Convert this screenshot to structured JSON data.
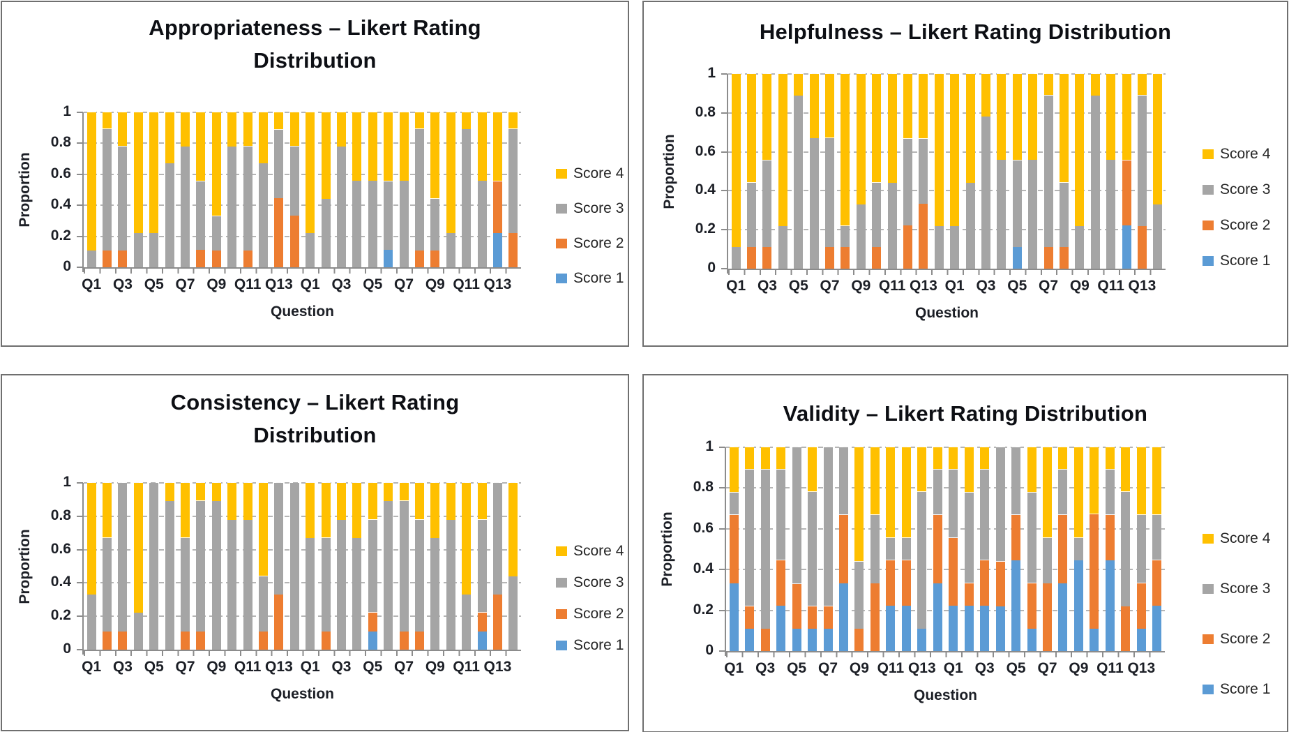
{
  "legend_labels": [
    "Score 4",
    "Score 3",
    "Score 2",
    "Score 1"
  ],
  "colors": {
    "score1_blue": "#5B9BD5",
    "score2_orange": "#ED7D31",
    "score3_gray": "#A5A5A5",
    "score4_yellow": "#FFC000",
    "gridline": "#b5b5b5",
    "axis": "#8c8c8c",
    "title_text": "#0d0f14"
  },
  "chart_data": [
    {
      "type": "bar",
      "stacked": true,
      "title": "Appropriateness – Likert Rating Distribution",
      "title_lines": [
        "Appropriateness – Likert Rating",
        "Distribution"
      ],
      "xlabel": "Question",
      "ylabel": "Proportion",
      "ylim": [
        0,
        1
      ],
      "ytick_labels": [
        "0",
        "0.2",
        "0.4",
        "0.6",
        "0.8",
        "1"
      ],
      "grid": "dashed-horizontal",
      "legend_position": "right",
      "legend_order": [
        "Score 4",
        "Score 3",
        "Score 2",
        "Score 1"
      ],
      "categories": [
        "Q1",
        "Q2",
        "Q3",
        "Q4",
        "Q5",
        "Q6",
        "Q7",
        "Q8",
        "Q9",
        "Q10",
        "Q11",
        "Q12",
        "Q13",
        "Q14",
        "Q1",
        "Q2",
        "Q3",
        "Q4",
        "Q5",
        "Q6",
        "Q7",
        "Q8",
        "Q9",
        "Q10",
        "Q11",
        "Q12",
        "Q13",
        "Q14"
      ],
      "xtick_labels_shown": [
        "Q1",
        "Q3",
        "Q5",
        "Q7",
        "Q9",
        "Q11",
        "Q13",
        "Q1",
        "Q3",
        "Q5",
        "Q7",
        "Q9",
        "Q11",
        "Q13"
      ],
      "series": [
        {
          "name": "Score 1",
          "color": "#5B9BD5",
          "values": [
            0,
            0,
            0,
            0,
            0,
            0,
            0,
            0,
            0,
            0,
            0,
            0,
            0,
            0,
            0,
            0,
            0,
            0,
            0,
            0.11,
            0,
            0,
            0,
            0,
            0,
            0,
            0.22,
            0
          ]
        },
        {
          "name": "Score 2",
          "color": "#ED7D31",
          "values": [
            0,
            0.11,
            0.11,
            0,
            0,
            0,
            0,
            0.11,
            0.11,
            0,
            0.11,
            0,
            0.44,
            0.33,
            0,
            0,
            0,
            0,
            0,
            0,
            0,
            0.11,
            0.11,
            0,
            0,
            0,
            0.33,
            0.22
          ]
        },
        {
          "name": "Score 3",
          "color": "#A5A5A5",
          "values": [
            0.11,
            0.78,
            0.67,
            0.22,
            0.22,
            0.67,
            0.78,
            0.44,
            0.22,
            0.78,
            0.67,
            0.67,
            0.44,
            0.44,
            0.22,
            0.44,
            0.78,
            0.56,
            0.56,
            0.44,
            0.56,
            0.78,
            0.33,
            0.22,
            0.89,
            0.56,
            0,
            0.67
          ]
        },
        {
          "name": "Score 4",
          "color": "#FFC000",
          "values": [
            0.89,
            0.11,
            0.22,
            0.78,
            0.78,
            0.33,
            0.22,
            0.44,
            0.67,
            0.22,
            0.22,
            0.33,
            0.11,
            0.22,
            0.78,
            0.56,
            0.22,
            0.44,
            0.44,
            0.44,
            0.44,
            0.11,
            0.56,
            0.78,
            0.11,
            0.44,
            0.44,
            0.11
          ]
        }
      ]
    },
    {
      "type": "bar",
      "stacked": true,
      "title": "Helpfulness – Likert Rating Distribution",
      "title_lines": [
        "Helpfulness – Likert Rating Distribution"
      ],
      "xlabel": "Question",
      "ylabel": "Proportion",
      "ylim": [
        0,
        1
      ],
      "ytick_labels": [
        "0",
        "0.2",
        "0.4",
        "0.6",
        "0.8",
        "1"
      ],
      "grid": "dashed-horizontal",
      "legend_position": "right",
      "legend_order": [
        "Score 4",
        "Score 3",
        "Score 2",
        "Score 1"
      ],
      "categories": [
        "Q1",
        "Q2",
        "Q3",
        "Q4",
        "Q5",
        "Q6",
        "Q7",
        "Q8",
        "Q9",
        "Q10",
        "Q11",
        "Q12",
        "Q13",
        "Q14",
        "Q1",
        "Q2",
        "Q3",
        "Q4",
        "Q5",
        "Q6",
        "Q7",
        "Q8",
        "Q9",
        "Q10",
        "Q11",
        "Q12",
        "Q13",
        "Q14"
      ],
      "xtick_labels_shown": [
        "Q1",
        "Q3",
        "Q5",
        "Q7",
        "Q9",
        "Q11",
        "Q13",
        "Q1",
        "Q3",
        "Q5",
        "Q7",
        "Q9",
        "Q11",
        "Q13"
      ],
      "series": [
        {
          "name": "Score 1",
          "color": "#5B9BD5",
          "values": [
            0,
            0,
            0,
            0,
            0,
            0,
            0,
            0,
            0,
            0,
            0,
            0,
            0,
            0,
            0,
            0,
            0,
            0,
            0.11,
            0,
            0,
            0,
            0,
            0,
            0,
            0.22,
            0,
            0
          ]
        },
        {
          "name": "Score 2",
          "color": "#ED7D31",
          "values": [
            0,
            0.11,
            0.11,
            0,
            0,
            0,
            0.11,
            0.11,
            0,
            0.11,
            0,
            0.22,
            0.33,
            0,
            0,
            0,
            0,
            0,
            0,
            0,
            0.11,
            0.11,
            0,
            0,
            0,
            0.33,
            0.22,
            0
          ]
        },
        {
          "name": "Score 3",
          "color": "#A5A5A5",
          "values": [
            0.11,
            0.33,
            0.44,
            0.22,
            0.89,
            0.67,
            0.56,
            0.11,
            0.33,
            0.33,
            0.44,
            0.44,
            0.33,
            0.22,
            0.22,
            0.44,
            0.78,
            0.56,
            0.44,
            0.56,
            0.78,
            0.33,
            0.22,
            0.89,
            0.56,
            0,
            0.67,
            0.33
          ]
        },
        {
          "name": "Score 4",
          "color": "#FFC000",
          "values": [
            0.89,
            0.56,
            0.44,
            0.78,
            0.11,
            0.33,
            0.33,
            0.78,
            0.67,
            0.56,
            0.56,
            0.33,
            0.33,
            0.78,
            0.78,
            0.56,
            0.22,
            0.44,
            0.44,
            0.44,
            0.11,
            0.56,
            0.78,
            0.11,
            0.44,
            0.44,
            0.11,
            0.67
          ]
        }
      ]
    },
    {
      "type": "bar",
      "stacked": true,
      "title": "Consistency – Likert Rating Distribution",
      "title_lines": [
        "Consistency – Likert Rating",
        "Distribution"
      ],
      "xlabel": "Question",
      "ylabel": "Proportion",
      "ylim": [
        0,
        1
      ],
      "ytick_labels": [
        "0",
        "0.2",
        "0.4",
        "0.6",
        "0.8",
        "1"
      ],
      "grid": "dashed-horizontal",
      "legend_position": "right",
      "legend_order": [
        "Score 4",
        "Score 3",
        "Score 2",
        "Score 1"
      ],
      "categories": [
        "Q1",
        "Q2",
        "Q3",
        "Q4",
        "Q5",
        "Q6",
        "Q7",
        "Q8",
        "Q9",
        "Q10",
        "Q11",
        "Q12",
        "Q13",
        "Q14",
        "Q1",
        "Q2",
        "Q3",
        "Q4",
        "Q5",
        "Q6",
        "Q7",
        "Q8",
        "Q9",
        "Q10",
        "Q11",
        "Q12",
        "Q13",
        "Q14"
      ],
      "xtick_labels_shown": [
        "Q1",
        "Q3",
        "Q5",
        "Q7",
        "Q9",
        "Q11",
        "Q13",
        "Q1",
        "Q3",
        "Q5",
        "Q7",
        "Q9",
        "Q11",
        "Q13"
      ],
      "series": [
        {
          "name": "Score 1",
          "color": "#5B9BD5",
          "values": [
            0,
            0,
            0,
            0,
            0,
            0,
            0,
            0,
            0,
            0,
            0,
            0,
            0,
            0,
            0,
            0,
            0,
            0,
            0.11,
            0,
            0,
            0,
            0,
            0,
            0,
            0.11,
            0,
            0
          ]
        },
        {
          "name": "Score 2",
          "color": "#ED7D31",
          "values": [
            0,
            0.11,
            0.11,
            0,
            0,
            0,
            0.11,
            0.11,
            0,
            0,
            0,
            0.11,
            0.33,
            0,
            0,
            0.11,
            0,
            0,
            0.11,
            0,
            0.11,
            0.11,
            0,
            0,
            0,
            0.11,
            0.33,
            0
          ]
        },
        {
          "name": "Score 3",
          "color": "#A5A5A5",
          "values": [
            0.33,
            0.56,
            0.89,
            0.22,
            1,
            0.89,
            0.56,
            0.78,
            0.89,
            0.78,
            0.78,
            0.33,
            0.67,
            1,
            0.67,
            0.56,
            0.78,
            0.67,
            0.56,
            0.89,
            0.78,
            0.67,
            0.67,
            0.78,
            0.33,
            0.56,
            0.67,
            0.44
          ]
        },
        {
          "name": "Score 4",
          "color": "#FFC000",
          "values": [
            0.67,
            0.33,
            0,
            0.78,
            0,
            0.11,
            0.33,
            0.11,
            0.11,
            0.22,
            0.22,
            0.56,
            0,
            0,
            0.33,
            0.33,
            0.22,
            0.33,
            0.22,
            0.11,
            0.11,
            0.22,
            0.33,
            0.22,
            0.67,
            0.22,
            0,
            0.56
          ]
        }
      ]
    },
    {
      "type": "bar",
      "stacked": true,
      "title": "Validity – Likert Rating Distribution",
      "title_lines": [
        "Validity – Likert Rating Distribution"
      ],
      "xlabel": "Question",
      "ylabel": "Proportion",
      "ylim": [
        0,
        1
      ],
      "ytick_labels": [
        "0",
        "0.2",
        "0.4",
        "0.6",
        "0.8",
        "1"
      ],
      "grid": "dashed-horizontal",
      "legend_position": "right",
      "legend_order": [
        "Score 4",
        "Score 3",
        "Score 2",
        "Score 1"
      ],
      "categories": [
        "Q1",
        "Q2",
        "Q3",
        "Q4",
        "Q5",
        "Q6",
        "Q7",
        "Q8",
        "Q9",
        "Q10",
        "Q11",
        "Q12",
        "Q13",
        "Q14",
        "Q1",
        "Q2",
        "Q3",
        "Q4",
        "Q5",
        "Q6",
        "Q7",
        "Q8",
        "Q9",
        "Q10",
        "Q11",
        "Q12",
        "Q13",
        "Q14"
      ],
      "xtick_labels_shown": [
        "Q1",
        "Q3",
        "Q5",
        "Q7",
        "Q9",
        "Q11",
        "Q13",
        "Q1",
        "Q3",
        "Q5",
        "Q7",
        "Q9",
        "Q11",
        "Q13"
      ],
      "series": [
        {
          "name": "Score 1",
          "color": "#5B9BD5",
          "values": [
            0.33,
            0.11,
            0,
            0.22,
            0.11,
            0.11,
            0.11,
            0.33,
            0,
            0,
            0.22,
            0.22,
            0.11,
            0.33,
            0.22,
            0.22,
            0.22,
            0.22,
            0.44,
            0.11,
            0,
            0.33,
            0.44,
            0.11,
            0.44,
            0,
            0.11,
            0.22
          ]
        },
        {
          "name": "Score 2",
          "color": "#ED7D31",
          "values": [
            0.33,
            0.11,
            0.11,
            0.22,
            0.22,
            0.11,
            0.11,
            0.33,
            0.11,
            0.33,
            0.22,
            0.22,
            0,
            0.33,
            0.33,
            0.11,
            0.22,
            0.22,
            0.22,
            0.22,
            0.33,
            0.33,
            0,
            0.56,
            0.22,
            0.22,
            0.22,
            0.22
          ]
        },
        {
          "name": "Score 3",
          "color": "#A5A5A5",
          "values": [
            0.11,
            0.67,
            0.78,
            0.44,
            0.67,
            0.56,
            0.78,
            0.33,
            0.33,
            0.33,
            0.11,
            0.11,
            0.67,
            0.22,
            0.33,
            0.44,
            0.44,
            0.56,
            0.33,
            0.44,
            0.22,
            0.22,
            0.11,
            0,
            0.22,
            0.56,
            0.33,
            0.22
          ]
        },
        {
          "name": "Score 4",
          "color": "#FFC000",
          "values": [
            0.22,
            0.11,
            0.11,
            0.11,
            0,
            0.22,
            0,
            0,
            0.56,
            0.33,
            0.44,
            0.44,
            0.22,
            0.11,
            0.11,
            0.22,
            0.11,
            0,
            0,
            0.22,
            0.44,
            0.11,
            0.44,
            0.33,
            0.11,
            0.22,
            0.33,
            0.33
          ]
        }
      ]
    }
  ]
}
